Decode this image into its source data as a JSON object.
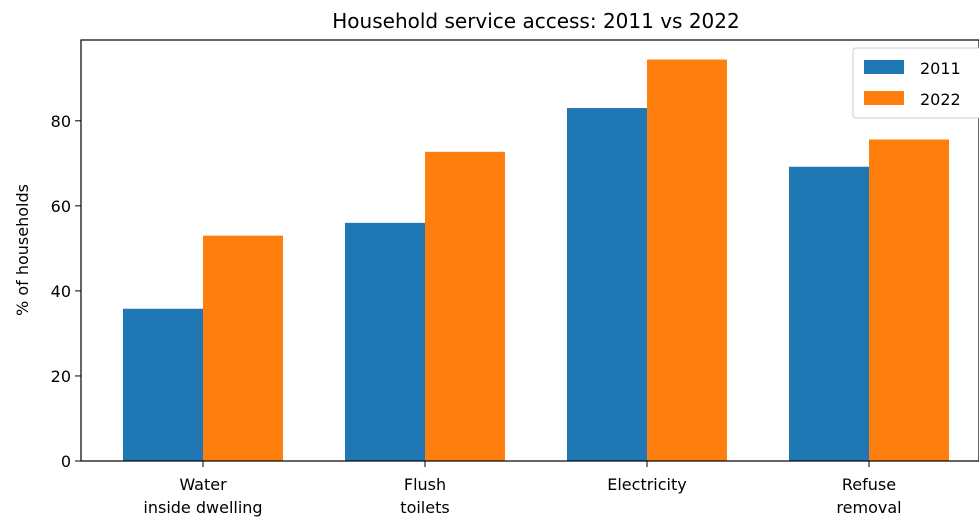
{
  "chart_data": {
    "type": "bar",
    "title": "Household service access: 2011 vs 2022",
    "xlabel": "",
    "ylabel": "% of households",
    "categories": [
      [
        "Water",
        "inside dwelling"
      ],
      [
        "Flush",
        "toilets"
      ],
      [
        "Electricity"
      ],
      [
        "Refuse",
        "removal"
      ]
    ],
    "series": [
      {
        "name": "2011",
        "color": "#1f77b4",
        "values": [
          35.8,
          56.0,
          83.0,
          69.2
        ]
      },
      {
        "name": "2022",
        "color": "#ff7f0e",
        "values": [
          53.0,
          72.7,
          94.4,
          75.6
        ]
      }
    ],
    "ylim": [
      0,
      99
    ],
    "yticks": [
      0,
      20,
      40,
      60,
      80
    ],
    "grid": false,
    "legend_position": "top-right"
  }
}
